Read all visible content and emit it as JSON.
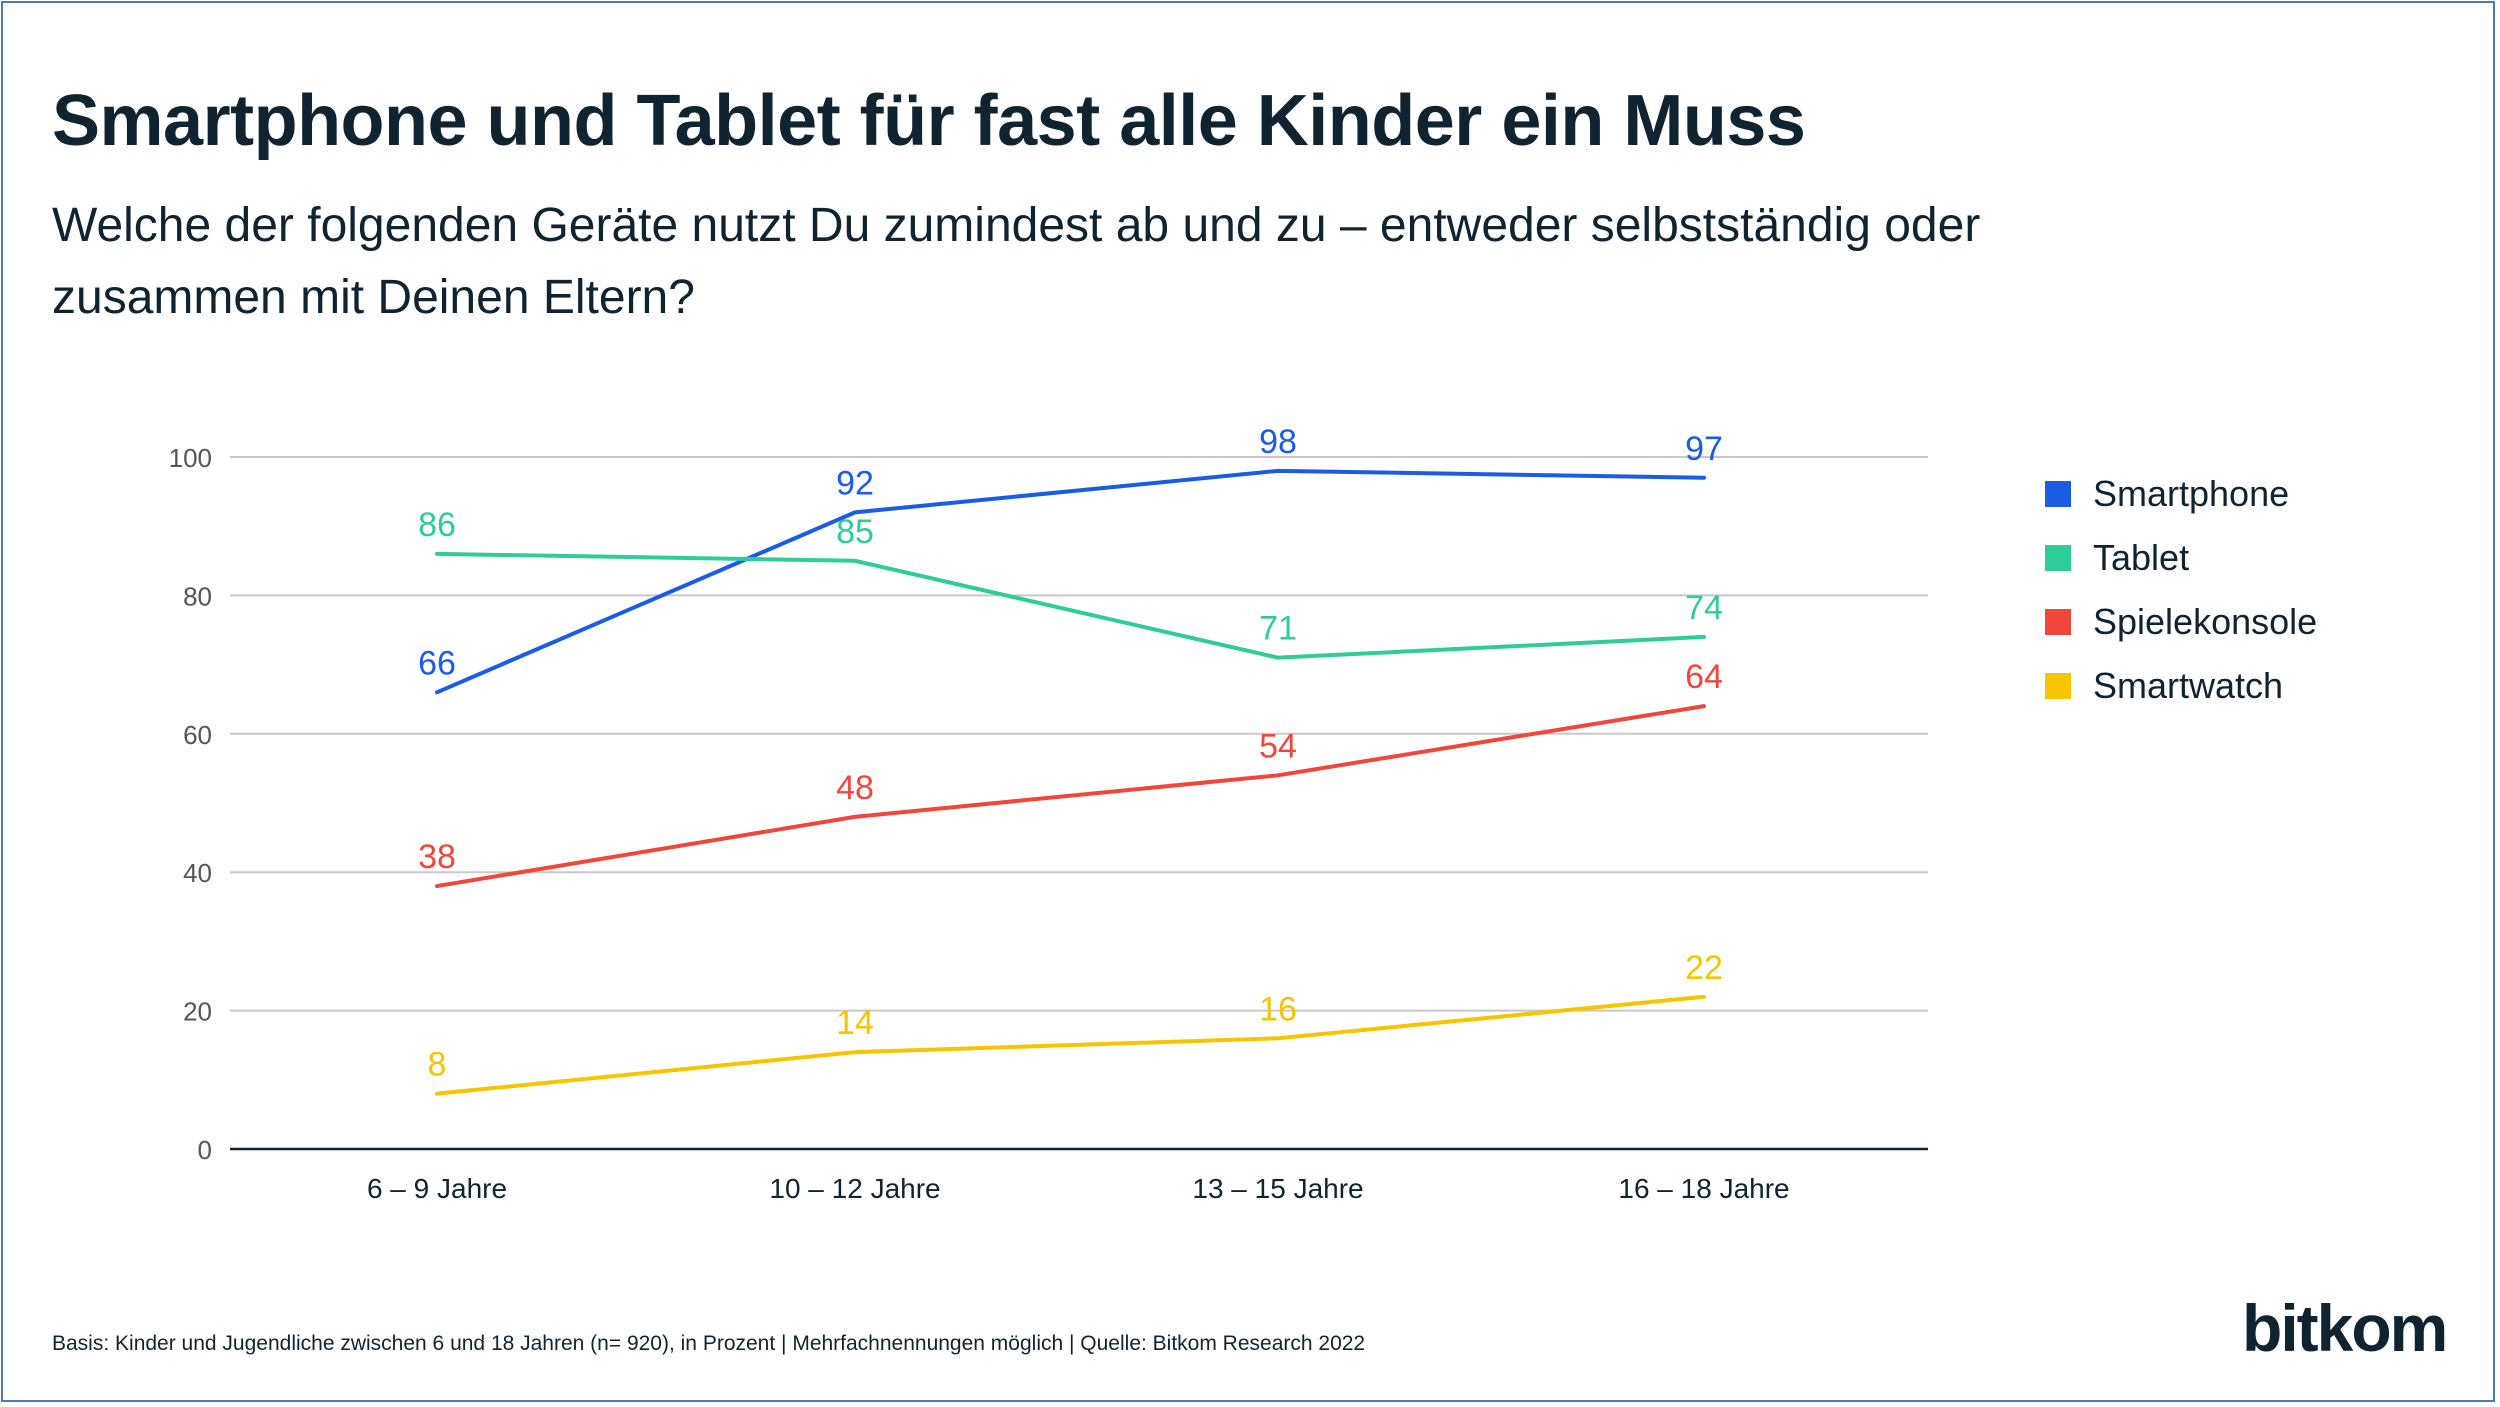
{
  "header": {
    "title": "Smartphone und Tablet für fast alle Kinder ein Muss",
    "subtitle": "Welche der folgenden Geräte nutzt Du zumindest ab und zu – entweder selbstständig oder zusammen mit Deinen Eltern?"
  },
  "chart_data": {
    "type": "line",
    "title": "Smartphone und Tablet für fast alle Kinder ein Muss",
    "subtitle": "Welche der folgenden Geräte nutzt Du zumindest ab und zu – entweder selbstständig oder zusammen mit Deinen Eltern?",
    "xlabel": "",
    "ylabel": "",
    "categories": [
      "6 – 9 Jahre",
      "10 – 12 Jahre",
      "13 – 15 Jahre",
      "16 – 18 Jahre"
    ],
    "ylim": [
      0,
      100
    ],
    "yticks": [
      0,
      20,
      40,
      60,
      80,
      100
    ],
    "grid": true,
    "legend_position": "right",
    "series": [
      {
        "name": "Smartphone",
        "color": "#1a5ce6",
        "values": [
          66,
          92,
          98,
          97
        ]
      },
      {
        "name": "Tablet",
        "color": "#2ecc96",
        "values": [
          86,
          85,
          71,
          74
        ]
      },
      {
        "name": "Spielekonsole",
        "color": "#f0463c",
        "values": [
          38,
          48,
          54,
          64
        ]
      },
      {
        "name": "Smartwatch",
        "color": "#f7c500",
        "values": [
          8,
          14,
          16,
          22
        ]
      }
    ]
  },
  "footer": {
    "note": "Basis: Kinder und Jugendliche zwischen 6 und 18 Jahren (n= 920), in Prozent | Mehrfachnennungen möglich | Quelle: Bitkom Research 2022",
    "logo_text": "bitkom"
  },
  "colors": {
    "text": "#0f2330",
    "frame": "#4f77c4",
    "grid": "#c8c8c8",
    "axis": "#0f2330",
    "tick_label": "#555555"
  }
}
